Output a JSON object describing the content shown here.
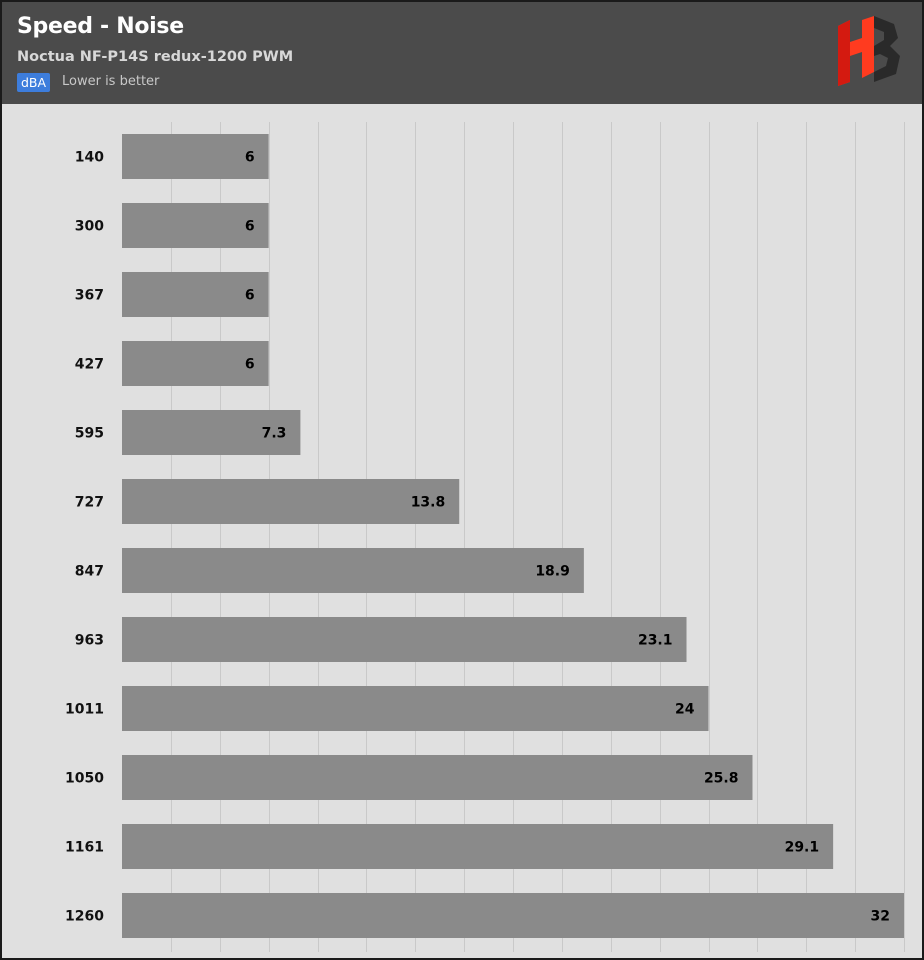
{
  "header": {
    "title": "Speed - Noise",
    "subtitle": "Noctua NF-P14S redux-1200 PWM",
    "unit": "dBA",
    "hint": "Lower is better",
    "logo_text": "HB",
    "logo_colors": [
      "#ff3b1f",
      "#d41a10",
      "#2a2a2a"
    ]
  },
  "chart_data": {
    "type": "bar",
    "orientation": "horizontal",
    "title": "Speed - Noise",
    "subtitle": "Noctua NF-P14S redux-1200 PWM",
    "unit": "dBA",
    "note": "Lower is better",
    "categories": [
      "140",
      "300",
      "367",
      "427",
      "595",
      "727",
      "847",
      "963",
      "1011",
      "1050",
      "1161",
      "1260"
    ],
    "values": [
      6,
      6,
      6,
      6,
      7.3,
      13.8,
      18.9,
      23.1,
      24,
      25.8,
      29.1,
      32
    ],
    "value_labels": [
      "6",
      "6",
      "6",
      "6",
      "7.3",
      "13.8",
      "18.9",
      "23.1",
      "24",
      "25.8",
      "29.1",
      "32"
    ],
    "xlim": [
      0,
      32
    ],
    "grid": true,
    "bar_color": "#8a8a8a"
  }
}
